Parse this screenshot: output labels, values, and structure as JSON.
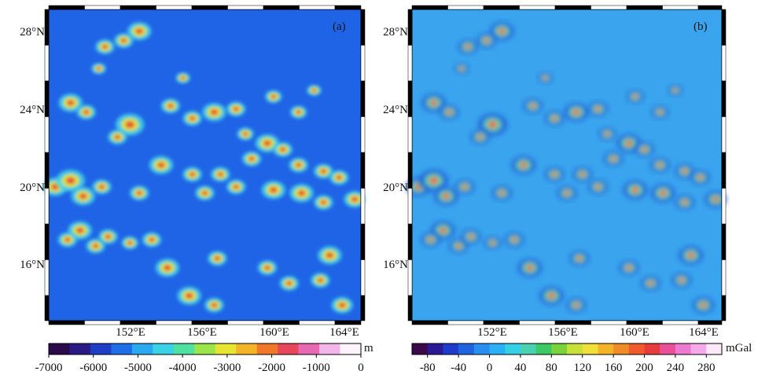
{
  "panels": [
    {
      "id": "a",
      "label": "(a)",
      "lat_labels": [
        "28°N",
        "24°N",
        "20°N",
        "16°N"
      ],
      "lon_labels": [
        "152°E",
        "156°E",
        "160°E",
        "164°E"
      ],
      "colorbar": {
        "unit": "m",
        "tick_labels": [
          "-7000",
          "-6000",
          "-5000",
          "-4000",
          "-3000",
          "-2000",
          "-1000",
          "0"
        ],
        "range": [
          -7000,
          0
        ],
        "colors": [
          "#2a0a4a",
          "#2b1a86",
          "#1e3ec8",
          "#1e6ee8",
          "#2aa8f0",
          "#3ad2e6",
          "#52e0a0",
          "#9ae64a",
          "#e6e632",
          "#f4b428",
          "#f07828",
          "#e8465a",
          "#e868b4",
          "#f2b6ea",
          "#fdf4fb"
        ]
      }
    },
    {
      "id": "b",
      "label": "(b)",
      "lat_labels": [
        "28°N",
        "24°N",
        "20°N",
        "16°N"
      ],
      "lon_labels": [
        "152°E",
        "156°E",
        "160°E",
        "164°E"
      ],
      "colorbar": {
        "unit": "mGal",
        "tick_labels": [
          "-80",
          "-40",
          "0",
          "40",
          "80",
          "120",
          "160",
          "200",
          "240",
          "280"
        ],
        "range": [
          -100,
          300
        ],
        "colors": [
          "#3c0a4a",
          "#2a1a96",
          "#1e3ccc",
          "#1e64e0",
          "#2a8ef0",
          "#2ab0f4",
          "#36cfe8",
          "#48d2b0",
          "#3cc864",
          "#7ad23c",
          "#c8e03a",
          "#f0e03a",
          "#f4b428",
          "#f08c28",
          "#f05a2c",
          "#e63c3c",
          "#e8509a",
          "#ec7ad0",
          "#f4aaea",
          "#fbe8f8"
        ]
      }
    }
  ]
}
